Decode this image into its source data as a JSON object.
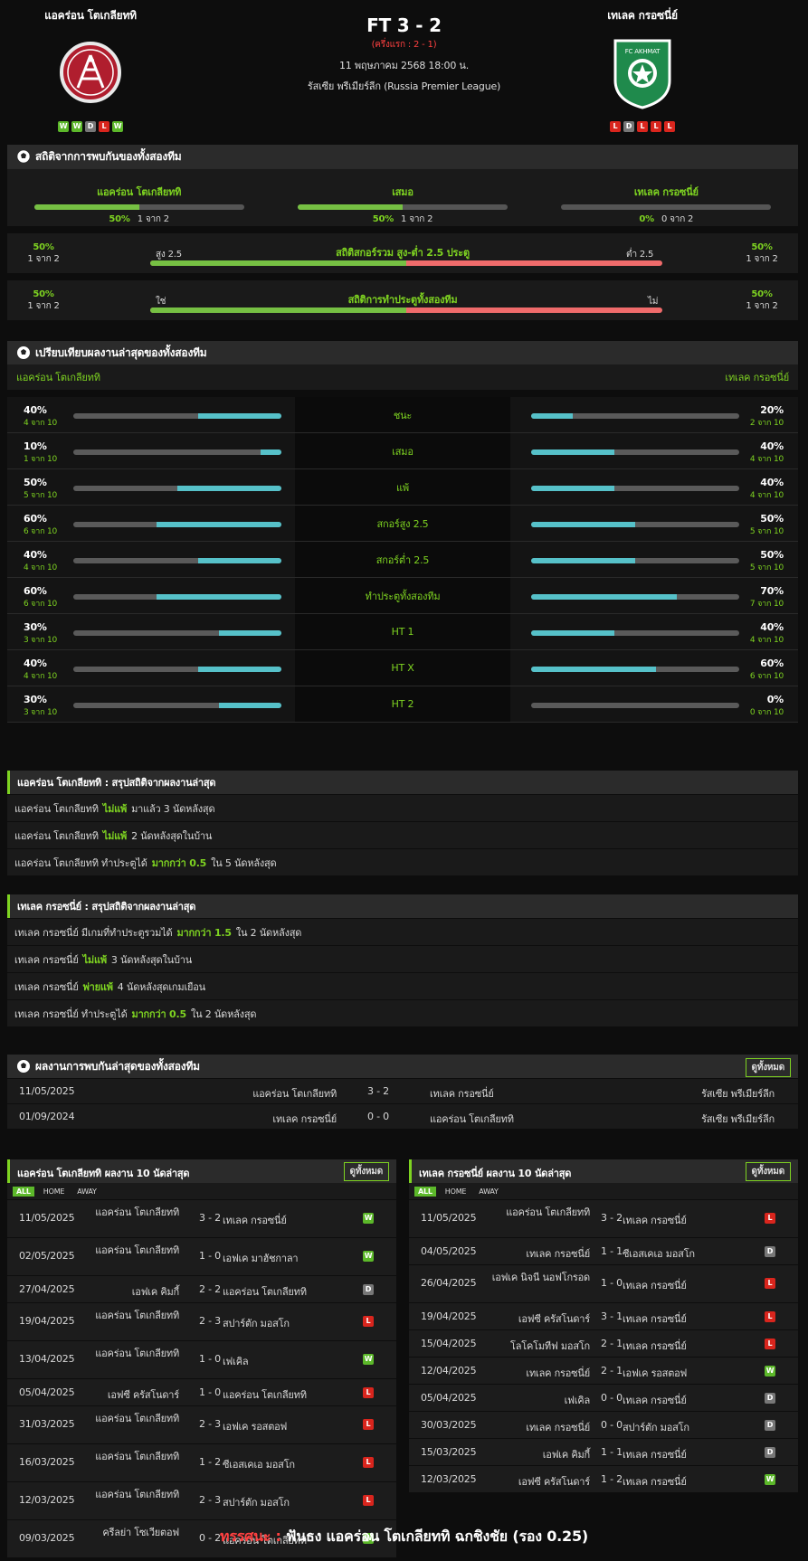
{
  "match": {
    "home": "แอคร่อน โตเกลียททิ",
    "away": "เทเลค กรอซนี่ย์",
    "score": "FT 3 - 2",
    "half_time": "(ครึ่งแรก : 2 - 1)",
    "date": "11 พฤษภาคม 2568 18:00 น.",
    "league": "รัสเซีย พรีเมียร์ลีก (Russia Premier League)",
    "home_form": [
      "W",
      "W",
      "D",
      "L",
      "W"
    ],
    "away_form": [
      "L",
      "D",
      "L",
      "L",
      "L"
    ],
    "away_crest_text": "FC AKHMAT"
  },
  "h2h": {
    "title": "สถิติจากการพบกันของทั้งสองทีม",
    "cols": [
      {
        "label": "แอคร่อน โตเกลียททิ",
        "pct": "50%",
        "count": "1 จาก 2",
        "value": 50
      },
      {
        "label": "เสมอ",
        "pct": "50%",
        "count": "1 จาก 2",
        "value": 50
      },
      {
        "label": "เทเลค กรอซนี่ย์",
        "pct": "0%",
        "count": "0 จาก 2",
        "value": 0
      }
    ],
    "ou": {
      "title": "สถิติสกอร์รวม สูง-ต่ำ 2.5 ประตู",
      "left_label": "สูง 2.5",
      "right_label": "ต่ำ 2.5",
      "left_pct": "50%",
      "left_count": "1 จาก 2",
      "right_pct": "50%",
      "right_count": "1 จาก 2",
      "value": 50
    },
    "btts": {
      "title": "สถิติการทำประตูทั้งสองทีม",
      "left_label": "ใช่",
      "right_label": "ไม่",
      "left_pct": "50%",
      "left_count": "1 จาก 2",
      "right_pct": "50%",
      "right_count": "1 จาก 2",
      "value": 50
    }
  },
  "compare": {
    "title": "เปรียบเทียบผลงานล่าสุดของทั้งสองทีม",
    "home": "แอคร่อน โตเกลียททิ",
    "away": "เทเลค กรอซนี่ย์",
    "rows": [
      {
        "label": "ชนะ",
        "hp": "40%",
        "hc": "4 จาก 10",
        "hv": 40,
        "ap": "20%",
        "ac": "2 จาก 10",
        "av": 20
      },
      {
        "label": "เสมอ",
        "hp": "10%",
        "hc": "1 จาก 10",
        "hv": 10,
        "ap": "40%",
        "ac": "4 จาก 10",
        "av": 40
      },
      {
        "label": "แพ้",
        "hp": "50%",
        "hc": "5 จาก 10",
        "hv": 50,
        "ap": "40%",
        "ac": "4 จาก 10",
        "av": 40
      },
      {
        "label": "สกอร์สูง 2.5",
        "hp": "60%",
        "hc": "6 จาก 10",
        "hv": 60,
        "ap": "50%",
        "ac": "5 จาก 10",
        "av": 50
      },
      {
        "label": "สกอร์ต่ำ 2.5",
        "hp": "40%",
        "hc": "4 จาก 10",
        "hv": 40,
        "ap": "50%",
        "ac": "5 จาก 10",
        "av": 50
      },
      {
        "label": "ทำประตูทั้งสองทีม",
        "hp": "60%",
        "hc": "6 จาก 10",
        "hv": 60,
        "ap": "70%",
        "ac": "7 จาก 10",
        "av": 70
      },
      {
        "label": "HT 1",
        "hp": "30%",
        "hc": "3 จาก 10",
        "hv": 30,
        "ap": "40%",
        "ac": "4 จาก 10",
        "av": 40
      },
      {
        "label": "HT X",
        "hp": "40%",
        "hc": "4 จาก 10",
        "hv": 40,
        "ap": "60%",
        "ac": "6 จาก 10",
        "av": 60
      },
      {
        "label": "HT 2",
        "hp": "30%",
        "hc": "3 จาก 10",
        "hv": 30,
        "ap": "0%",
        "ac": "0 จาก 10",
        "av": 0
      }
    ]
  },
  "home_summary": {
    "title": "แอคร่อน โตเกลียททิ : สรุปสถิติจากผลงานล่าสุด",
    "rows": [
      [
        "แอคร่อน โตเกลียททิ",
        "ไม่แพ้",
        "มาแล้ว 3 นัดหลังสุด"
      ],
      [
        "แอคร่อน โตเกลียททิ",
        "ไม่แพ้",
        "2 นัดหลังสุดในบ้าน"
      ],
      [
        "แอคร่อน โตเกลียททิ ทำประตูได้",
        "มากกว่า 0.5",
        "ใน 5 นัดหลังสุด"
      ]
    ]
  },
  "away_summary": {
    "title": "เทเลค กรอซนี่ย์ : สรุปสถิติจากผลงานล่าสุด",
    "rows": [
      [
        "เทเลค กรอซนี่ย์ มีเกมที่ทำประตูรวมได้",
        "มากกว่า 1.5",
        "ใน 2 นัดหลังสุด"
      ],
      [
        "เทเลค กรอซนี่ย์",
        "ไม่แพ้",
        "3 นัดหลังสุดในบ้าน"
      ],
      [
        "เทเลค กรอซนี่ย์",
        "พ่ายแพ้",
        "4 นัดหลังสุดเกมเยือน"
      ],
      [
        "เทเลค กรอซนี่ย์ ทำประตูได้",
        "มากกว่า 0.5",
        "ใน 2 นัดหลังสุด"
      ]
    ]
  },
  "h2h_list": {
    "title": "ผลงานการพบกันล่าสุดของทั้งสองทีม",
    "view_all": "ดูทั้งหมด",
    "rows": [
      {
        "date": "11/05/2025",
        "home": "แอคร่อน โตเกลียททิ",
        "score": "3 - 2",
        "away": "เทเลค กรอซนี่ย์",
        "league": "รัสเซีย พรีเมียร์ลีก"
      },
      {
        "date": "01/09/2024",
        "home": "เทเลค กรอซนี่ย์",
        "score": "0 - 0",
        "away": "แอคร่อน โตเกลียททิ",
        "league": "รัสเซีย พรีเมียร์ลีก"
      }
    ]
  },
  "home_last10": {
    "title": "แอคร่อน โตเกลียททิ ผลงาน 10 นัดล่าสุด",
    "view_all": "ดูทั้งหมด",
    "tabs": [
      "ALL",
      "HOME",
      "AWAY"
    ],
    "rows": [
      {
        "date": "11/05/2025",
        "home": "แอคร่อน โตเกลียททิ",
        "score": "3 - 2",
        "away": "เทเลค กรอซนี่ย์",
        "res": "W"
      },
      {
        "date": "02/05/2025",
        "home": "แอคร่อน โตเกลียททิ",
        "score": "1 - 0",
        "away": "เอฟเค มาฮัชกาลา",
        "res": "W"
      },
      {
        "date": "27/04/2025",
        "home": "เอฟเค คิมกี้",
        "score": "2 - 2",
        "away": "แอคร่อน โตเกลียททิ",
        "res": "D"
      },
      {
        "date": "19/04/2025",
        "home": "แอคร่อน โตเกลียททิ",
        "score": "2 - 3",
        "away": "สปาร์ตัก มอสโก",
        "res": "L"
      },
      {
        "date": "13/04/2025",
        "home": "แอคร่อน โตเกลียททิ",
        "score": "1 - 0",
        "away": "เฟเคิล",
        "res": "W"
      },
      {
        "date": "05/04/2025",
        "home": "เอฟซี ครัสโนดาร์",
        "score": "1 - 0",
        "away": "แอคร่อน โตเกลียททิ",
        "res": "L"
      },
      {
        "date": "31/03/2025",
        "home": "แอคร่อน โตเกลียททิ",
        "score": "2 - 3",
        "away": "เอฟเค รอสตอฟ",
        "res": "L"
      },
      {
        "date": "16/03/2025",
        "home": "แอคร่อน โตเกลียททิ",
        "score": "1 - 2",
        "away": "ซีเอสเคเอ มอสโก",
        "res": "L"
      },
      {
        "date": "12/03/2025",
        "home": "แอคร่อน โตเกลียททิ",
        "score": "2 - 3",
        "away": "สปาร์ตัก มอสโก",
        "res": "L"
      },
      {
        "date": "09/03/2025",
        "home": "ครีลย่า โซเวียตอฟ",
        "score": "0 - 2",
        "away": "แอคร่อน โตเกลียททิ",
        "res": "W"
      }
    ]
  },
  "away_last10": {
    "title": "เทเลค กรอซนี่ย์ ผลงาน 10 นัดล่าสุด",
    "view_all": "ดูทั้งหมด",
    "tabs": [
      "ALL",
      "HOME",
      "AWAY"
    ],
    "rows": [
      {
        "date": "11/05/2025",
        "home": "แอคร่อน โตเกลียททิ",
        "score": "3 - 2",
        "away": "เทเลค กรอซนี่ย์",
        "res": "L"
      },
      {
        "date": "04/05/2025",
        "home": "เทเลค กรอซนี่ย์",
        "score": "1 - 1",
        "away": "ซีเอสเคเอ มอสโก",
        "res": "D"
      },
      {
        "date": "26/04/2025",
        "home": "เอฟเค นิจนี นอฟโกรอด",
        "score": "1 - 0",
        "away": "เทเลค กรอซนี่ย์",
        "res": "L"
      },
      {
        "date": "19/04/2025",
        "home": "เอฟซี ครัสโนดาร์",
        "score": "3 - 1",
        "away": "เทเลค กรอซนี่ย์",
        "res": "L"
      },
      {
        "date": "15/04/2025",
        "home": "โลโคโมทีฟ มอสโก",
        "score": "2 - 1",
        "away": "เทเลค กรอซนี่ย์",
        "res": "L"
      },
      {
        "date": "12/04/2025",
        "home": "เทเลค กรอซนี่ย์",
        "score": "2 - 1",
        "away": "เอฟเค รอสตอฟ",
        "res": "W"
      },
      {
        "date": "05/04/2025",
        "home": "เฟเคิล",
        "score": "0 - 0",
        "away": "เทเลค กรอซนี่ย์",
        "res": "D"
      },
      {
        "date": "30/03/2025",
        "home": "เทเลค กรอซนี่ย์",
        "score": "0 - 0",
        "away": "สปาร์ตัก มอสโก",
        "res": "D"
      },
      {
        "date": "15/03/2025",
        "home": "เอฟเค คิมกี้",
        "score": "1 - 1",
        "away": "เทเลค กรอซนี่ย์",
        "res": "D"
      },
      {
        "date": "12/03/2025",
        "home": "เอฟซี ครัสโนดาร์",
        "score": "1 - 2",
        "away": "เทเลค กรอซนี่ย์",
        "res": "W"
      }
    ]
  },
  "verdict": {
    "lead": "ทรรศนะ :",
    "text": "ฟันธง แอคร่อน โตเกลียททิ ฉกชิงชัย (รอง 0.25)"
  }
}
